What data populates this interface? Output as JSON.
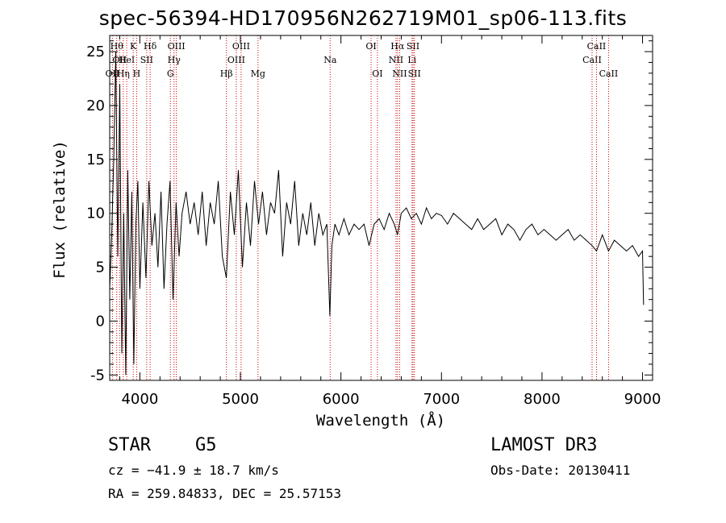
{
  "title": "spec-56394-HD170956N262719M01_sp06-113.fits",
  "info": {
    "object_class": "STAR",
    "subclass": "G5",
    "survey": "LAMOST DR3",
    "redshift": "cz = −41.9 ± 18.7 km/s",
    "obs_date": "Obs-Date: 20130411",
    "coords": "RA = 259.84833, DEC =  25.57153"
  },
  "chart_data": {
    "type": "line",
    "xlabel": "Wavelength (Å)",
    "ylabel": "Flux (relative)",
    "xlim": [
      3700,
      9100
    ],
    "ylim": [
      -5.5,
      26.5
    ],
    "xticks": [
      4000,
      5000,
      6000,
      7000,
      8000,
      9000
    ],
    "yticks": [
      -5,
      0,
      5,
      10,
      15,
      20,
      25
    ],
    "grid": false,
    "series": [
      {
        "x": [
          3700,
          3720,
          3740,
          3760,
          3780,
          3800,
          3820,
          3840,
          3860,
          3880,
          3900,
          3920,
          3940,
          3960,
          3980,
          4000,
          4030,
          4060,
          4090,
          4120,
          4150,
          4180,
          4210,
          4240,
          4270,
          4300,
          4330,
          4360,
          4390,
          4420,
          4460,
          4500,
          4540,
          4580,
          4620,
          4660,
          4700,
          4740,
          4780,
          4820,
          4860,
          4900,
          4940,
          4980,
          5020,
          5060,
          5100,
          5140,
          5180,
          5220,
          5260,
          5300,
          5340,
          5380,
          5420,
          5460,
          5500,
          5540,
          5580,
          5620,
          5660,
          5700,
          5740,
          5780,
          5820,
          5860,
          5890,
          5910,
          5940,
          5980,
          6030,
          6080,
          6130,
          6180,
          6230,
          6280,
          6330,
          6380,
          6430,
          6480,
          6530,
          6563,
          6600,
          6650,
          6700,
          6750,
          6800,
          6850,
          6900,
          6950,
          7000,
          7060,
          7120,
          7180,
          7240,
          7300,
          7360,
          7420,
          7480,
          7540,
          7600,
          7660,
          7720,
          7780,
          7840,
          7900,
          7960,
          8020,
          8080,
          8140,
          8200,
          8260,
          8320,
          8380,
          8440,
          8498,
          8542,
          8600,
          8662,
          8720,
          8780,
          8840,
          8900,
          8960,
          9000,
          9010
        ],
        "y": [
          3,
          8,
          15,
          25,
          6,
          22,
          -3,
          10,
          -5,
          14,
          2,
          12,
          -4,
          9,
          13,
          3,
          11,
          4,
          13,
          7,
          10,
          5,
          12,
          3,
          9,
          13,
          2,
          11,
          6,
          10,
          12,
          9,
          11,
          8,
          12,
          7,
          11,
          9,
          13,
          6,
          4,
          12,
          8,
          14,
          5,
          11,
          7,
          13,
          9,
          12,
          8,
          11,
          10,
          14,
          6,
          11,
          9,
          13,
          7,
          10,
          8,
          11,
          7,
          10,
          8,
          9,
          0.5,
          7,
          9,
          8,
          9.5,
          8,
          9,
          8.5,
          9,
          7,
          9,
          9.5,
          8.5,
          10,
          9,
          8,
          10,
          10.5,
          9.5,
          10,
          9,
          10.5,
          9.5,
          10,
          9.8,
          9,
          10,
          9.5,
          9,
          8.5,
          9.5,
          8.5,
          9,
          9.5,
          8,
          9,
          8.5,
          7.5,
          8.5,
          9,
          8,
          8.5,
          8,
          7.5,
          8,
          8.5,
          7.5,
          8,
          7.5,
          7,
          6.5,
          8,
          6.5,
          7.5,
          7,
          6.5,
          7,
          6,
          6.5,
          1.5
        ]
      }
    ],
    "lines": [
      {
        "wl": 3727,
        "label": "OII",
        "row": 2
      },
      {
        "wl": 3770,
        "label": "Hθ",
        "row": 0
      },
      {
        "wl": 3798,
        "label": "OII",
        "row": 1
      },
      {
        "wl": 3835,
        "label": "Hη",
        "row": 2
      },
      {
        "wl": 3869,
        "label": "HeI",
        "row": 1
      },
      {
        "wl": 3934,
        "label": "K",
        "row": 0
      },
      {
        "wl": 3968,
        "label": "H",
        "row": 2
      },
      {
        "wl": 4068,
        "label": "SII",
        "row": 1
      },
      {
        "wl": 4102,
        "label": "Hδ",
        "row": 0
      },
      {
        "wl": 4304,
        "label": "G",
        "row": 2
      },
      {
        "wl": 4340,
        "label": "Hγ",
        "row": 1
      },
      {
        "wl": 4363,
        "label": "OIII",
        "row": 0
      },
      {
        "wl": 4861,
        "label": "Hβ",
        "row": 2
      },
      {
        "wl": 4959,
        "label": "OIII",
        "row": 1
      },
      {
        "wl": 5007,
        "label": "OIII",
        "row": 0
      },
      {
        "wl": 5175,
        "label": "Mg",
        "row": 2
      },
      {
        "wl": 5893,
        "label": "Na",
        "row": 1
      },
      {
        "wl": 6300,
        "label": "OI",
        "row": 0
      },
      {
        "wl": 6363,
        "label": "OI",
        "row": 2
      },
      {
        "wl": 6548,
        "label": "NII",
        "row": 1
      },
      {
        "wl": 6563,
        "label": "Hα",
        "row": 0
      },
      {
        "wl": 6584,
        "label": "NII",
        "row": 2
      },
      {
        "wl": 6707,
        "label": "Li",
        "row": 1
      },
      {
        "wl": 6717,
        "label": "SII",
        "row": 0
      },
      {
        "wl": 6731,
        "label": "SII",
        "row": 2
      },
      {
        "wl": 8498,
        "label": "CaII",
        "row": 1
      },
      {
        "wl": 8542,
        "label": "CaII",
        "row": 0
      },
      {
        "wl": 8662,
        "label": "CaII",
        "row": 2
      }
    ]
  }
}
